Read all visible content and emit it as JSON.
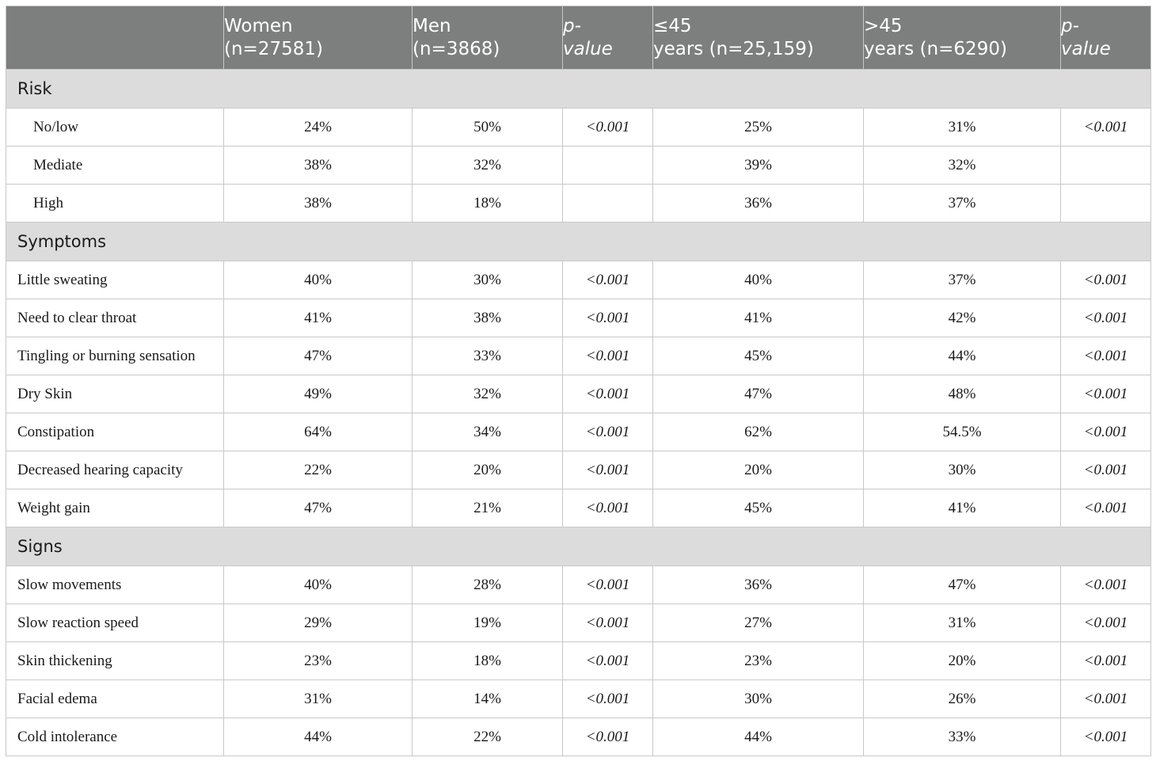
{
  "header": {
    "cells": [
      "",
      "Women\n(n=27581)",
      "Men\n(n=3868)",
      "p-\nvalue",
      "≤45\nyears (n=25,159)",
      ">45\nyears (n=6290)",
      "p-\nvalue"
    ]
  },
  "sections": [
    {
      "title": "Risk",
      "rows": [
        {
          "label": "No/low",
          "values": [
            "24%",
            "50%",
            "<0.001",
            "25%",
            "31%",
            "<0.001"
          ]
        },
        {
          "label": "Mediate",
          "values": [
            "38%",
            "32%",
            "",
            "39%",
            "32%",
            ""
          ]
        },
        {
          "label": "High",
          "values": [
            "38%",
            "18%",
            "",
            "36%",
            "37%",
            ""
          ]
        }
      ]
    },
    {
      "title": "Symptoms",
      "rows": [
        {
          "label": "Little sweating",
          "values": [
            "40%",
            "30%",
            "<0.001",
            "40%",
            "37%",
            "<0.001"
          ]
        },
        {
          "label": "Need to clear throat",
          "values": [
            "41%",
            "38%",
            "<0.001",
            "41%",
            "42%",
            "<0.001"
          ]
        },
        {
          "label": "Tingling or burning sensation",
          "values": [
            "47%",
            "33%",
            "<0.001",
            "45%",
            "44%",
            "<0.001"
          ]
        },
        {
          "label": "Dry Skin",
          "values": [
            "49%",
            "32%",
            "<0.001",
            "47%",
            "48%",
            "<0.001"
          ]
        },
        {
          "label": "Constipation",
          "values": [
            "64%",
            "34%",
            "<0.001",
            "62%",
            "54.5%",
            "<0.001"
          ]
        },
        {
          "label": "Decreased hearing capacity",
          "values": [
            "22%",
            "20%",
            "<0.001",
            "20%",
            "30%",
            "<0.001"
          ]
        },
        {
          "label": "Weight gain",
          "values": [
            "47%",
            "21%",
            "<0.001",
            "45%",
            "41%",
            "<0.001"
          ]
        }
      ]
    },
    {
      "title": "Signs",
      "rows": [
        {
          "label": "Slow movements",
          "values": [
            "40%",
            "28%",
            "<0.001",
            "36%",
            "47%",
            "<0.001"
          ]
        },
        {
          "label": "Slow reaction speed",
          "values": [
            "29%",
            "19%",
            "<0.001",
            "27%",
            "31%",
            "<0.001"
          ]
        },
        {
          "label": "Skin thickening",
          "values": [
            "23%",
            "18%",
            "<0.001",
            "23%",
            "20%",
            "<0.001"
          ]
        },
        {
          "label": "Facial edema",
          "values": [
            "31%",
            "14%",
            "<0.001",
            "30%",
            "26%",
            "<0.001"
          ]
        },
        {
          "label": "Cold intolerance",
          "values": [
            "44%",
            "22%",
            "<0.001",
            "44%",
            "33%",
            "<0.001"
          ]
        }
      ]
    }
  ]
}
